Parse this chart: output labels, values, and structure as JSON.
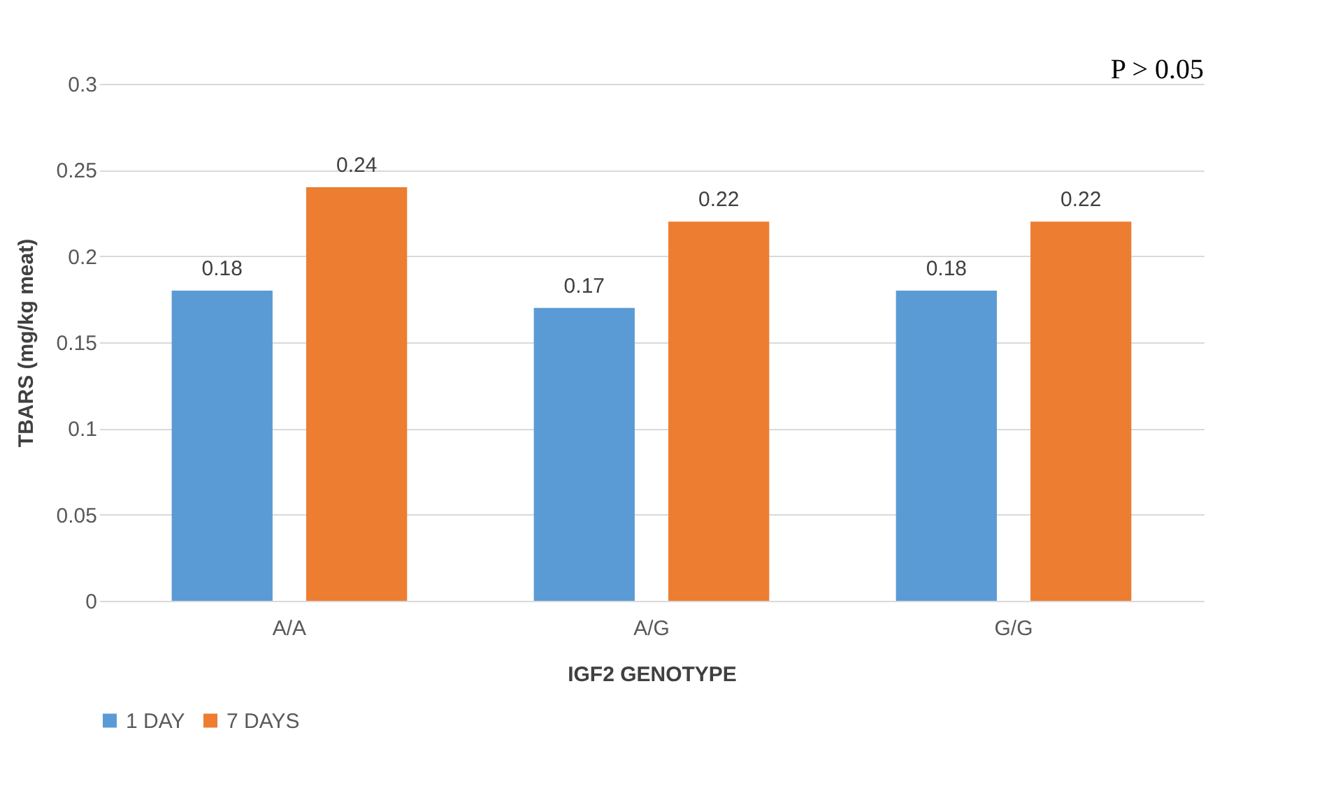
{
  "chart_data": {
    "type": "bar",
    "categories": [
      "A/A",
      "A/G",
      "G/G"
    ],
    "series": [
      {
        "name": "1 DAY",
        "color": "#5b9bd5",
        "values": [
          0.18,
          0.17,
          0.18
        ]
      },
      {
        "name": "7 DAYS",
        "color": "#ed7d31",
        "values": [
          0.24,
          0.22,
          0.22
        ]
      }
    ],
    "ylabel": "TBARS (mg/kg meat)",
    "xlabel": "IGF2 GENOTYPE",
    "ylim": [
      0,
      0.3
    ],
    "yticks": [
      0,
      0.05,
      0.1,
      0.15,
      0.2,
      0.25,
      0.3
    ],
    "grid": "y",
    "legend": "bottom",
    "data_labels": true,
    "annotations": [
      "P > 0.05"
    ]
  }
}
